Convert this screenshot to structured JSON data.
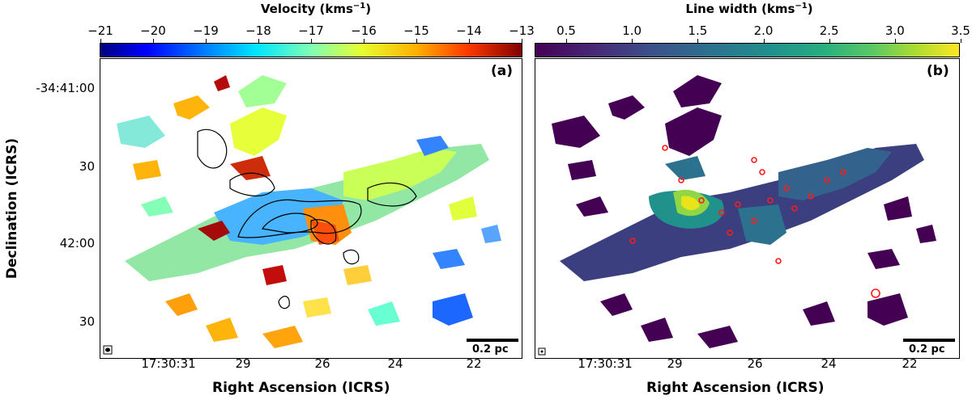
{
  "left_panel": {
    "colorbar_title": "Velocity (kms$^{-1}$)",
    "colorbar_title_main": "Velocity (kms",
    "colorbar_title_exp": "−1",
    "colorbar_title_close": ")",
    "colorbar_ticks": [
      "−21",
      "−20",
      "−19",
      "−18",
      "−17",
      "−16",
      "−15",
      "−14",
      "−13"
    ],
    "panel_label": "(a)",
    "scalebar_label": "0.2 pc",
    "x_ticks": [
      "17:30:31",
      "29",
      "26",
      "24",
      "22"
    ],
    "y_ticks": [
      "-34:41:00",
      "30",
      "42:00",
      "30"
    ],
    "colors": [
      "#00007f",
      "#0040ff",
      "#00c8ff",
      "#7fffb4",
      "#e6ff30",
      "#ffb000",
      "#ff3a00",
      "#800000"
    ]
  },
  "right_panel": {
    "colorbar_title_main": "Line width (kms",
    "colorbar_title_exp": "−1",
    "colorbar_title_close": ")",
    "colorbar_ticks": [
      "0.5",
      "1.0",
      "1.5",
      "2.0",
      "2.5",
      "3.0",
      "3.5"
    ],
    "panel_label": "(b)",
    "scalebar_label": "0.2 pc",
    "x_ticks": [
      "17:30:31",
      "29",
      "26",
      "24",
      "22"
    ],
    "colors": [
      "#440154",
      "#3b528b",
      "#21918c",
      "#5ec962",
      "#fde725"
    ]
  },
  "axes": {
    "xlabel": "Right Ascension (ICRS)",
    "ylabel": "Declination (ICRS)"
  }
}
